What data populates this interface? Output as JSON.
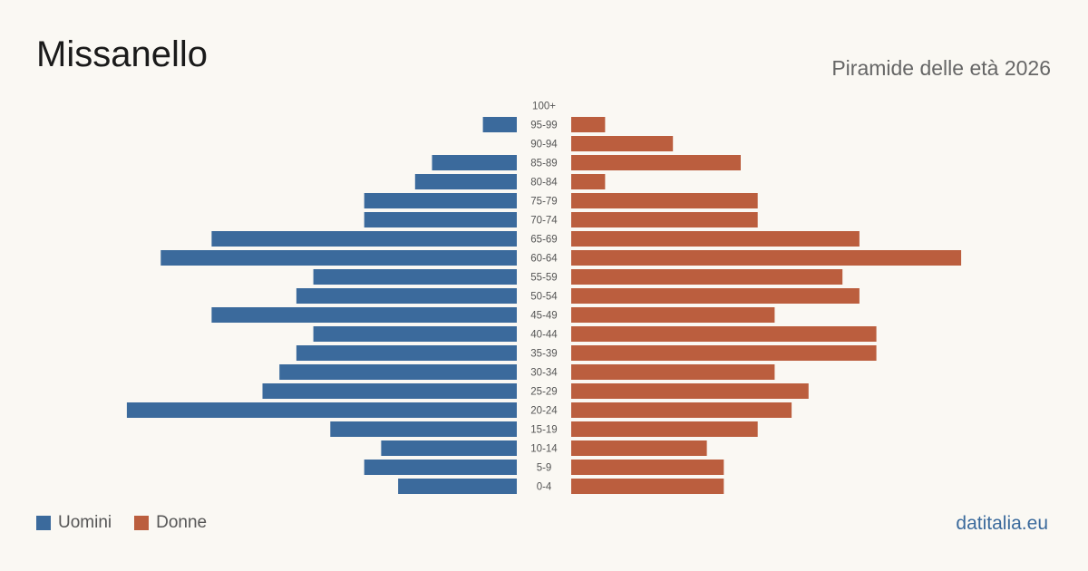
{
  "header": {
    "title": "Missanello",
    "subtitle": "Piramide delle età 2026"
  },
  "legend": {
    "men_label": "Uomini",
    "women_label": "Donne"
  },
  "brand": "datitalia.eu",
  "colors": {
    "men": "#3b6a9c",
    "women": "#bb5e3e",
    "background": "#faf8f3"
  },
  "chart_data": {
    "type": "bar",
    "orientation": "horizontal-pyramid",
    "categories": [
      "100+",
      "95-99",
      "90-94",
      "85-89",
      "80-84",
      "75-79",
      "70-74",
      "65-69",
      "60-64",
      "55-59",
      "50-54",
      "45-49",
      "40-44",
      "35-39",
      "30-34",
      "25-29",
      "20-24",
      "15-19",
      "10-14",
      "5-9",
      "0-4"
    ],
    "series": [
      {
        "name": "Uomini",
        "values": [
          0,
          2,
          0,
          5,
          6,
          9,
          9,
          18,
          21,
          12,
          13,
          18,
          12,
          13,
          14,
          15,
          23,
          11,
          8,
          9,
          7
        ]
      },
      {
        "name": "Donne",
        "values": [
          0,
          2,
          6,
          10,
          2,
          11,
          11,
          17,
          23,
          16,
          17,
          12,
          18,
          18,
          12,
          14,
          13,
          11,
          8,
          9,
          9
        ]
      }
    ],
    "xlabel": "",
    "ylabel": "",
    "legend_position": "bottom-left"
  }
}
